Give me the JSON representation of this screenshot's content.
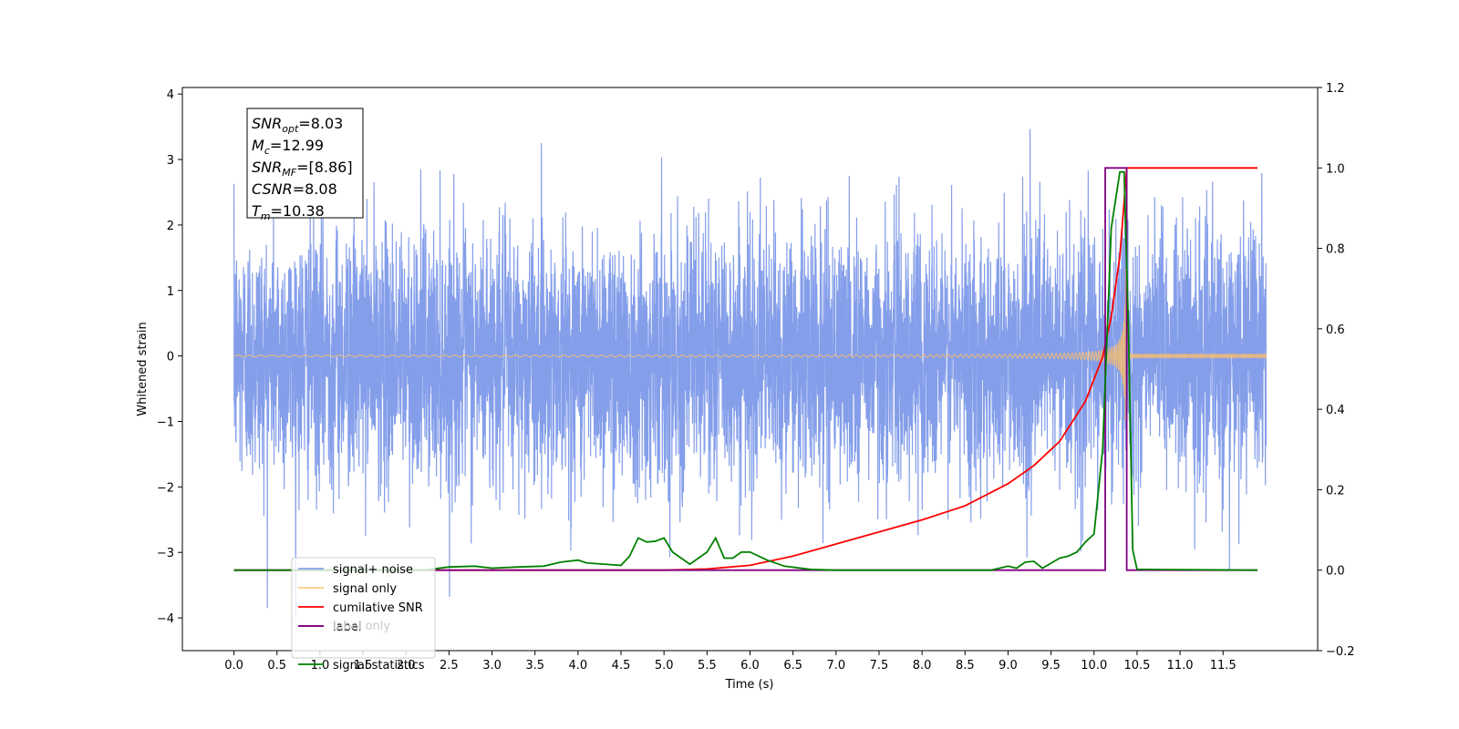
{
  "chart_data": {
    "type": "line",
    "xlabel": "Time (s)",
    "ylabel": "Whitened strain",
    "xlim": [
      -0.6,
      12.6
    ],
    "ylim": [
      -4.5,
      4.1
    ],
    "ylim_right": [
      -0.2,
      1.2
    ],
    "x_ticks": [
      "0.0",
      "0.5",
      "1.0",
      "1.5",
      "2.0",
      "2.5",
      "3.0",
      "3.5",
      "4.0",
      "4.5",
      "5.0",
      "5.5",
      "6.0",
      "6.5",
      "7.0",
      "7.5",
      "8.0",
      "8.5",
      "9.0",
      "9.5",
      "10.0",
      "10.5",
      "11.0",
      "11.5"
    ],
    "y_ticks_left": [
      "−4",
      "−3",
      "−2",
      "−1",
      "0",
      "1",
      "2",
      "3",
      "4"
    ],
    "y_ticks_right": [
      "−0.2",
      "0.0",
      "0.2",
      "0.4",
      "0.6",
      "0.8",
      "1.0",
      "1.2"
    ],
    "annotation": [
      {
        "base": "SNR",
        "sub": "opt",
        "rest": "=8.03"
      },
      {
        "base": "M",
        "sub": "c",
        "rest": "=12.99"
      },
      {
        "base": "SNR",
        "sub": "MF",
        "rest": "=[8.86]"
      },
      {
        "base": "CSNR",
        "sub": "",
        "rest": "=8.08"
      },
      {
        "base": "T",
        "sub": "m",
        "rest": "=10.38"
      }
    ],
    "legend_position": "lower-left",
    "grid": false,
    "series": [
      {
        "name": "signal+ noise",
        "color": "#6f8de6",
        "axis": "left",
        "x_range": [
          0.0,
          12.0
        ],
        "noise_sigma": 0.95
      },
      {
        "name": "signal only",
        "color": "#ffbf66",
        "axis": "left",
        "x_range": [
          0.0,
          12.0
        ],
        "merger_time": 10.38
      },
      {
        "name": "cumilative SNR",
        "color": "#ff0000",
        "axis": "right",
        "x": [
          0.0,
          5.0,
          5.5,
          6.0,
          6.5,
          7.0,
          7.5,
          8.0,
          8.5,
          9.0,
          9.3,
          9.6,
          9.9,
          10.1,
          10.2,
          10.3,
          10.38,
          11.9
        ],
        "y": [
          0.0,
          0.0,
          0.003,
          0.012,
          0.035,
          0.065,
          0.095,
          0.125,
          0.16,
          0.215,
          0.26,
          0.32,
          0.42,
          0.53,
          0.63,
          0.78,
          1.0,
          1.0
        ]
      },
      {
        "name": "label",
        "color": "#800080",
        "axis": "right",
        "x": [
          0.0,
          10.13,
          10.13,
          10.38,
          10.38,
          11.9
        ],
        "y": [
          0.0,
          0.0,
          1.0,
          1.0,
          0.0,
          0.0
        ]
      },
      {
        "name": "label only",
        "color": "#d3d3d3",
        "axis": "right",
        "x": [],
        "y": []
      },
      {
        "name": "signal statistics",
        "color": "#008000",
        "axis": "right",
        "x": [
          0.0,
          2.2,
          2.5,
          2.8,
          3.0,
          3.3,
          3.6,
          3.8,
          4.0,
          4.1,
          4.3,
          4.5,
          4.6,
          4.7,
          4.8,
          4.9,
          5.0,
          5.1,
          5.3,
          5.5,
          5.6,
          5.7,
          5.8,
          5.9,
          6.0,
          6.2,
          6.4,
          6.7,
          7.0,
          8.8,
          9.0,
          9.1,
          9.2,
          9.3,
          9.4,
          9.6,
          9.7,
          9.8,
          9.9,
          10.0,
          10.1,
          10.2,
          10.3,
          10.35,
          10.4,
          10.45,
          10.5,
          11.9
        ],
        "y": [
          0.0,
          0.0,
          0.008,
          0.01,
          0.005,
          0.008,
          0.01,
          0.02,
          0.025,
          0.018,
          0.015,
          0.012,
          0.035,
          0.08,
          0.07,
          0.072,
          0.08,
          0.045,
          0.015,
          0.045,
          0.08,
          0.03,
          0.03,
          0.045,
          0.045,
          0.025,
          0.01,
          0.002,
          0.0,
          0.0,
          0.01,
          0.005,
          0.02,
          0.022,
          0.005,
          0.03,
          0.035,
          0.045,
          0.07,
          0.09,
          0.3,
          0.85,
          0.99,
          0.99,
          0.6,
          0.05,
          0.002,
          0.0
        ]
      }
    ]
  }
}
